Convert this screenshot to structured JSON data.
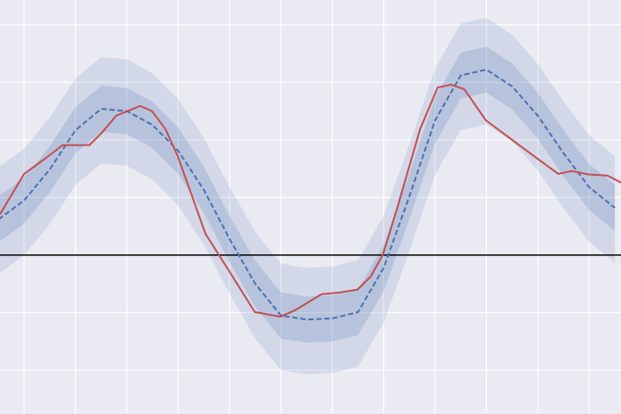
{
  "chart_data": {
    "type": "line",
    "grid": true,
    "xlim": [
      0.53,
      12.62
    ],
    "ylim": [
      -2.76,
      4.43
    ],
    "xticks": [
      1,
      2,
      3,
      4,
      5,
      6,
      7,
      8,
      9,
      10,
      11,
      12
    ],
    "yticks": [
      -2,
      -1,
      0,
      1,
      2,
      3,
      4
    ],
    "hline": 0,
    "hline_color": "#000000",
    "x": [
      0.5,
      1,
      1.5,
      2,
      2.5,
      3,
      3.5,
      4,
      4.5,
      5,
      5.5,
      6,
      6.5,
      7,
      7.5,
      8,
      8.5,
      9,
      9.5,
      10,
      10.5,
      11,
      11.5,
      12,
      12.5
    ],
    "bands": [
      {
        "color": "#4c72b0",
        "alpha": 0.15,
        "upper": [
          1.52,
          1.85,
          2.39,
          3.07,
          3.44,
          3.4,
          3.16,
          2.71,
          2.03,
          1.18,
          0.4,
          -0.15,
          -0.22,
          -0.2,
          -0.09,
          0.68,
          1.92,
          3.24,
          4.02,
          4.12,
          3.83,
          3.32,
          2.67,
          2.08,
          1.72
        ],
        "lower": [
          -0.33,
          0.0,
          0.54,
          1.22,
          1.59,
          1.55,
          1.31,
          0.86,
          0.18,
          -0.67,
          -1.45,
          -2.0,
          -2.07,
          -2.05,
          -1.94,
          -1.17,
          0.07,
          1.39,
          2.17,
          2.27,
          1.98,
          1.47,
          0.82,
          0.23,
          -0.13
        ]
      },
      {
        "color": "#4c72b0",
        "alpha": 0.2,
        "upper": [
          1.02,
          1.35,
          1.89,
          2.57,
          2.94,
          2.9,
          2.66,
          2.21,
          1.53,
          0.68,
          -0.1,
          -0.65,
          -0.72,
          -0.7,
          -0.59,
          0.18,
          1.42,
          2.74,
          3.52,
          3.62,
          3.33,
          2.82,
          2.17,
          1.58,
          1.22
        ],
        "lower": [
          0.22,
          0.55,
          1.09,
          1.77,
          2.14,
          2.1,
          1.86,
          1.41,
          0.73,
          -0.12,
          -0.9,
          -1.45,
          -1.52,
          -1.5,
          -1.39,
          -0.62,
          0.62,
          1.94,
          2.72,
          2.82,
          2.53,
          2.02,
          1.37,
          0.78,
          0.42
        ]
      }
    ],
    "series": [
      {
        "color": "#4c72b0",
        "linestyle": "dashed",
        "values": [
          0.62,
          0.95,
          1.49,
          2.17,
          2.54,
          2.5,
          2.26,
          1.81,
          1.13,
          0.28,
          -0.5,
          -1.05,
          -1.12,
          -1.1,
          -0.99,
          -0.22,
          1.02,
          2.34,
          3.12,
          3.22,
          2.93,
          2.42,
          1.77,
          1.18,
          0.82
        ]
      },
      {
        "color": "#c44e52",
        "linestyle": "solid",
        "x": [
          0.53,
          1,
          1.4,
          1.75,
          2.27,
          2.53,
          2.79,
          3.26,
          3.49,
          3.75,
          3.99,
          4.27,
          4.53,
          5,
          5.49,
          5.99,
          6.27,
          6.79,
          7.14,
          7.49,
          7.75,
          7.99,
          8.27,
          8.71,
          9.05,
          9.31,
          9.57,
          9.99,
          10.53,
          11,
          11.4,
          11.66,
          11.99,
          12.36,
          12.62
        ],
        "values": [
          0.71,
          1.41,
          1.67,
          1.91,
          1.91,
          2.14,
          2.42,
          2.59,
          2.5,
          2.19,
          1.72,
          1.02,
          0.37,
          -0.29,
          -0.99,
          -1.07,
          -0.96,
          -0.68,
          -0.65,
          -0.6,
          -0.37,
          0.02,
          0.84,
          2.19,
          2.91,
          2.96,
          2.88,
          2.34,
          1.98,
          1.67,
          1.41,
          1.46,
          1.4,
          1.38,
          1.26
        ]
      }
    ]
  }
}
